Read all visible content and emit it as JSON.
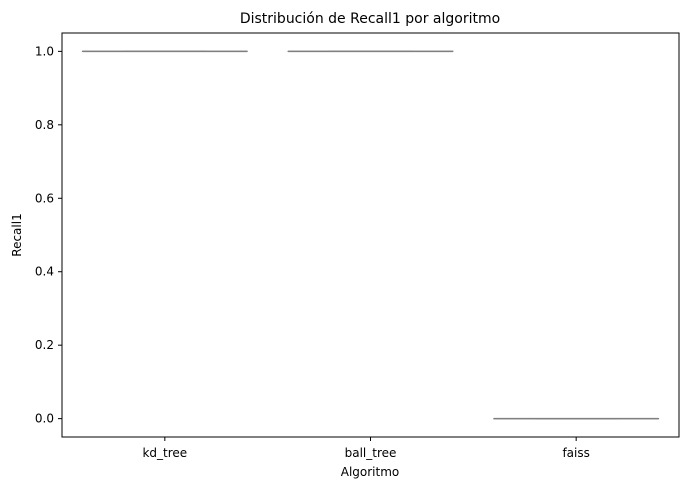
{
  "chart_data": {
    "type": "box",
    "title": "Distribución de Recall1 por algoritmo",
    "xlabel": "Algoritmo",
    "ylabel": "Recall1",
    "categories": [
      "kd_tree",
      "ball_tree",
      "faiss"
    ],
    "ylim": [
      -0.05,
      1.05
    ],
    "yticks": [
      0.0,
      0.2,
      0.4,
      0.6,
      0.8,
      1.0
    ],
    "ytick_labels": [
      "0.0",
      "0.2",
      "0.4",
      "0.6",
      "0.8",
      "1.0"
    ],
    "boxes": [
      {
        "category": "kd_tree",
        "min": 1.0,
        "q1": 1.0,
        "median": 1.0,
        "q3": 1.0,
        "max": 1.0
      },
      {
        "category": "ball_tree",
        "min": 1.0,
        "q1": 1.0,
        "median": 1.0,
        "q3": 1.0,
        "max": 1.0
      },
      {
        "category": "faiss",
        "min": 0.0,
        "q1": 0.0,
        "median": 0.0,
        "q3": 0.0,
        "max": 0.0
      }
    ],
    "grid": false,
    "legend": "none",
    "box_color": "#808080"
  }
}
